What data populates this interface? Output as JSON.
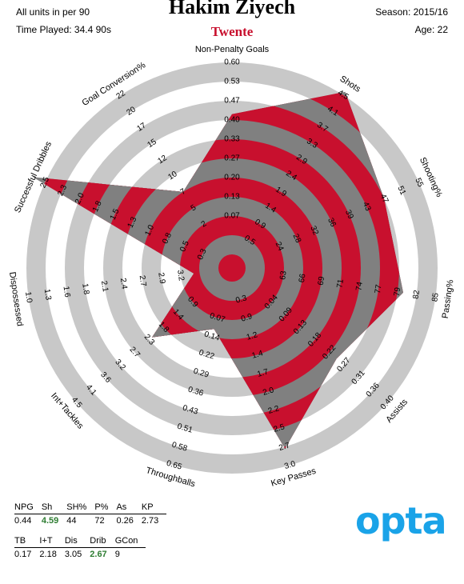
{
  "header": {
    "units": "All units in per 90",
    "time_played": "Time Played: 34.4 90s",
    "player": "Hakim Ziyech",
    "team": "Twente",
    "season": "Season: 2015/16",
    "age": "Age: 22"
  },
  "colors": {
    "accent": "#c8102e",
    "ring": "#c8c8c8",
    "polygon": "#808080",
    "logo": "#1aa3e8"
  },
  "chart_data": {
    "type": "radar",
    "axes": [
      {
        "label": "Non-Penalty Goals",
        "ticks": [
          "0.07",
          "0.13",
          "0.20",
          "0.27",
          "0.33",
          "0.40",
          "0.47",
          "0.53",
          "0.60"
        ],
        "value": 0.44,
        "max": 0.6
      },
      {
        "label": "Shots",
        "ticks": [
          "0.5",
          "0.9",
          "1.4",
          "1.9",
          "2.4",
          "2.9",
          "3.3",
          "3.7",
          "4.1",
          "4.5"
        ],
        "value": 4.59,
        "max": 4.5
      },
      {
        "label": "Shooting%",
        "ticks": [
          "24",
          "28",
          "32",
          "36",
          "39",
          "43",
          "47",
          "51",
          "55"
        ],
        "value": 44,
        "max": 55
      },
      {
        "label": "Passing%",
        "ticks": [
          "63",
          "66",
          "69",
          "71",
          "74",
          "77",
          "79",
          "82",
          "85"
        ],
        "value": 72,
        "max": 85
      },
      {
        "label": "Assists",
        "ticks": [
          "0.04",
          "0.09",
          "0.13",
          "0.18",
          "0.22",
          "0.27",
          "0.31",
          "0.36",
          "0.40"
        ],
        "value": 0.26,
        "max": 0.4
      },
      {
        "label": "Key Passes",
        "ticks": [
          "0.3",
          "0.9",
          "1.2",
          "1.4",
          "1.7",
          "2.0",
          "2.2",
          "2.5",
          "2.7",
          "3.0"
        ],
        "value": 2.73,
        "max": 3.0
      },
      {
        "label": "Throughballs",
        "ticks": [
          "0.07",
          "0.14",
          "0.22",
          "0.29",
          "0.36",
          "0.43",
          "0.51",
          "0.58",
          "0.65"
        ],
        "value": 0.17,
        "max": 0.65
      },
      {
        "label": "Int+Tackles",
        "ticks": [
          "0.9",
          "1.4",
          "1.8",
          "2.3",
          "2.7",
          "3.2",
          "3.6",
          "4.1",
          "4.5"
        ],
        "value": 2.18,
        "max": 4.5
      },
      {
        "label": "Dispossessed",
        "ticks": [
          "3.2",
          "2.9",
          "2.7",
          "2.4",
          "2.1",
          "1.8",
          "1.6",
          "1.3",
          "1.0"
        ],
        "value": 3.05,
        "max": 1.0
      },
      {
        "label": "Successful Dribbles",
        "ticks": [
          "0.3",
          "0.5",
          "0.8",
          "1.0",
          "1.3",
          "1.5",
          "1.8",
          "2.0",
          "2.3",
          "2.5"
        ],
        "value": 2.67,
        "max": 2.5
      },
      {
        "label": "Goal Conversion%",
        "ticks": [
          "2",
          "5",
          "7",
          "10",
          "12",
          "15",
          "17",
          "20",
          "22"
        ],
        "value": 9,
        "max": 22
      }
    ],
    "polygon_fractions": [
      0.73,
      1.02,
      0.8,
      0.83,
      0.65,
      0.91,
      0.26,
      0.48,
      0.13,
      1.07,
      0.4
    ]
  },
  "stats_table_1": {
    "headers": [
      "NPG",
      "Sh",
      "SH%",
      "P%",
      "As",
      "KP"
    ],
    "values": [
      "0.44",
      "4.59",
      "44",
      "72",
      "0.26",
      "2.73"
    ],
    "highlight": [
      1
    ]
  },
  "stats_table_2": {
    "headers": [
      "TB",
      "I+T",
      "Dis",
      "Drib",
      "GCon"
    ],
    "values": [
      "0.17",
      "2.18",
      "3.05",
      "2.67",
      "9"
    ],
    "highlight": [
      3
    ]
  },
  "logo": {
    "text": "opta"
  }
}
